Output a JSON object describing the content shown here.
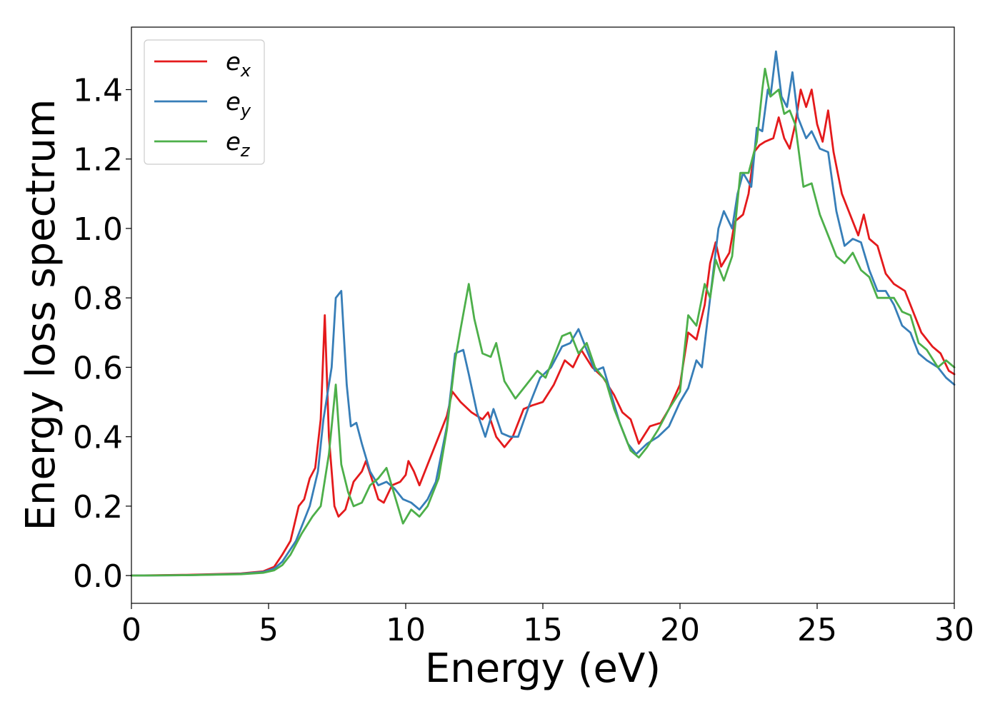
{
  "chart_data": {
    "type": "line",
    "title": "",
    "xlabel": "Energy (eV)",
    "ylabel": "Energy loss spectrum",
    "xlim": [
      0,
      30
    ],
    "ylim": [
      -0.08,
      1.58
    ],
    "x_ticks": [
      0,
      5,
      10,
      15,
      20,
      25,
      30
    ],
    "x_tick_labels": [
      "0",
      "5",
      "10",
      "15",
      "20",
      "25",
      "30"
    ],
    "y_ticks": [
      0.0,
      0.2,
      0.4,
      0.6,
      0.8,
      1.0,
      1.2,
      1.4
    ],
    "y_tick_labels": [
      "0.0",
      "0.2",
      "0.4",
      "0.6",
      "0.8",
      "1.0",
      "1.2",
      "1.4"
    ],
    "grid": false,
    "legend_position": "top-left",
    "series": [
      {
        "name": "e",
        "subscript": "x",
        "color": "#e41a1c",
        "points": [
          [
            0,
            0
          ],
          [
            2,
            0.002
          ],
          [
            4,
            0.006
          ],
          [
            4.8,
            0.012
          ],
          [
            5.2,
            0.025
          ],
          [
            5.5,
            0.06
          ],
          [
            5.8,
            0.1
          ],
          [
            6.1,
            0.2
          ],
          [
            6.3,
            0.22
          ],
          [
            6.5,
            0.28
          ],
          [
            6.7,
            0.31
          ],
          [
            6.9,
            0.45
          ],
          [
            7.05,
            0.75
          ],
          [
            7.2,
            0.4
          ],
          [
            7.4,
            0.2
          ],
          [
            7.55,
            0.17
          ],
          [
            7.8,
            0.19
          ],
          [
            8.1,
            0.27
          ],
          [
            8.4,
            0.3
          ],
          [
            8.55,
            0.33
          ],
          [
            8.8,
            0.27
          ],
          [
            9.0,
            0.22
          ],
          [
            9.2,
            0.21
          ],
          [
            9.5,
            0.26
          ],
          [
            9.8,
            0.27
          ],
          [
            10.0,
            0.29
          ],
          [
            10.1,
            0.33
          ],
          [
            10.3,
            0.3
          ],
          [
            10.5,
            0.26
          ],
          [
            10.8,
            0.32
          ],
          [
            11.2,
            0.4
          ],
          [
            11.5,
            0.46
          ],
          [
            11.7,
            0.53
          ],
          [
            12.0,
            0.5
          ],
          [
            12.4,
            0.47
          ],
          [
            12.8,
            0.45
          ],
          [
            13.0,
            0.47
          ],
          [
            13.3,
            0.4
          ],
          [
            13.6,
            0.37
          ],
          [
            13.9,
            0.4
          ],
          [
            14.3,
            0.48
          ],
          [
            14.6,
            0.49
          ],
          [
            15.0,
            0.5
          ],
          [
            15.4,
            0.55
          ],
          [
            15.8,
            0.62
          ],
          [
            16.1,
            0.6
          ],
          [
            16.4,
            0.65
          ],
          [
            16.8,
            0.6
          ],
          [
            17.2,
            0.57
          ],
          [
            17.6,
            0.52
          ],
          [
            17.9,
            0.47
          ],
          [
            18.2,
            0.45
          ],
          [
            18.5,
            0.38
          ],
          [
            18.9,
            0.43
          ],
          [
            19.3,
            0.44
          ],
          [
            19.6,
            0.48
          ],
          [
            20.0,
            0.55
          ],
          [
            20.3,
            0.7
          ],
          [
            20.6,
            0.68
          ],
          [
            20.9,
            0.78
          ],
          [
            21.1,
            0.9
          ],
          [
            21.3,
            0.96
          ],
          [
            21.5,
            0.89
          ],
          [
            21.8,
            0.93
          ],
          [
            22.0,
            1.02
          ],
          [
            22.3,
            1.04
          ],
          [
            22.5,
            1.1
          ],
          [
            22.7,
            1.22
          ],
          [
            22.9,
            1.24
          ],
          [
            23.1,
            1.25
          ],
          [
            23.4,
            1.26
          ],
          [
            23.6,
            1.32
          ],
          [
            23.8,
            1.26
          ],
          [
            24.0,
            1.23
          ],
          [
            24.2,
            1.3
          ],
          [
            24.4,
            1.4
          ],
          [
            24.6,
            1.35
          ],
          [
            24.8,
            1.4
          ],
          [
            25.0,
            1.3
          ],
          [
            25.2,
            1.25
          ],
          [
            25.4,
            1.34
          ],
          [
            25.6,
            1.22
          ],
          [
            25.9,
            1.1
          ],
          [
            26.2,
            1.04
          ],
          [
            26.5,
            0.98
          ],
          [
            26.7,
            1.04
          ],
          [
            26.9,
            0.97
          ],
          [
            27.2,
            0.95
          ],
          [
            27.5,
            0.87
          ],
          [
            27.8,
            0.84
          ],
          [
            28.2,
            0.82
          ],
          [
            28.5,
            0.76
          ],
          [
            28.8,
            0.7
          ],
          [
            29.2,
            0.66
          ],
          [
            29.5,
            0.64
          ],
          [
            29.8,
            0.59
          ],
          [
            30.0,
            0.58
          ]
        ]
      },
      {
        "name": "e",
        "subscript": "y",
        "color": "#377eb8",
        "points": [
          [
            0,
            0
          ],
          [
            2,
            0.001
          ],
          [
            4,
            0.005
          ],
          [
            4.8,
            0.01
          ],
          [
            5.2,
            0.02
          ],
          [
            5.5,
            0.04
          ],
          [
            6.0,
            0.1
          ],
          [
            6.5,
            0.2
          ],
          [
            6.8,
            0.3
          ],
          [
            7.0,
            0.45
          ],
          [
            7.3,
            0.6
          ],
          [
            7.45,
            0.8
          ],
          [
            7.65,
            0.82
          ],
          [
            7.85,
            0.55
          ],
          [
            8.0,
            0.43
          ],
          [
            8.2,
            0.44
          ],
          [
            8.4,
            0.38
          ],
          [
            8.7,
            0.3
          ],
          [
            9.0,
            0.26
          ],
          [
            9.3,
            0.27
          ],
          [
            9.6,
            0.25
          ],
          [
            9.9,
            0.22
          ],
          [
            10.2,
            0.21
          ],
          [
            10.5,
            0.19
          ],
          [
            10.8,
            0.22
          ],
          [
            11.1,
            0.27
          ],
          [
            11.5,
            0.43
          ],
          [
            11.8,
            0.64
          ],
          [
            12.1,
            0.65
          ],
          [
            12.3,
            0.58
          ],
          [
            12.6,
            0.47
          ],
          [
            12.9,
            0.4
          ],
          [
            13.2,
            0.48
          ],
          [
            13.5,
            0.41
          ],
          [
            13.8,
            0.4
          ],
          [
            14.1,
            0.4
          ],
          [
            14.5,
            0.49
          ],
          [
            14.9,
            0.57
          ],
          [
            15.3,
            0.6
          ],
          [
            15.7,
            0.66
          ],
          [
            16.0,
            0.67
          ],
          [
            16.3,
            0.71
          ],
          [
            16.6,
            0.65
          ],
          [
            16.9,
            0.59
          ],
          [
            17.2,
            0.6
          ],
          [
            17.5,
            0.52
          ],
          [
            17.8,
            0.44
          ],
          [
            18.1,
            0.38
          ],
          [
            18.4,
            0.35
          ],
          [
            18.8,
            0.38
          ],
          [
            19.2,
            0.4
          ],
          [
            19.6,
            0.43
          ],
          [
            20.0,
            0.5
          ],
          [
            20.3,
            0.54
          ],
          [
            20.6,
            0.62
          ],
          [
            20.8,
            0.6
          ],
          [
            21.1,
            0.8
          ],
          [
            21.4,
            1.0
          ],
          [
            21.6,
            1.05
          ],
          [
            21.9,
            1.0
          ],
          [
            22.1,
            1.1
          ],
          [
            22.3,
            1.16
          ],
          [
            22.6,
            1.12
          ],
          [
            22.8,
            1.29
          ],
          [
            23.0,
            1.28
          ],
          [
            23.2,
            1.4
          ],
          [
            23.3,
            1.38
          ],
          [
            23.5,
            1.51
          ],
          [
            23.7,
            1.38
          ],
          [
            23.9,
            1.35
          ],
          [
            24.1,
            1.45
          ],
          [
            24.3,
            1.32
          ],
          [
            24.6,
            1.26
          ],
          [
            24.8,
            1.28
          ],
          [
            25.1,
            1.23
          ],
          [
            25.4,
            1.22
          ],
          [
            25.7,
            1.05
          ],
          [
            26.0,
            0.95
          ],
          [
            26.3,
            0.97
          ],
          [
            26.6,
            0.96
          ],
          [
            26.9,
            0.88
          ],
          [
            27.2,
            0.82
          ],
          [
            27.5,
            0.82
          ],
          [
            27.8,
            0.78
          ],
          [
            28.1,
            0.72
          ],
          [
            28.4,
            0.7
          ],
          [
            28.7,
            0.64
          ],
          [
            29.0,
            0.62
          ],
          [
            29.4,
            0.6
          ],
          [
            29.7,
            0.57
          ],
          [
            30.0,
            0.55
          ]
        ]
      },
      {
        "name": "e",
        "subscript": "z",
        "color": "#4daf4a",
        "points": [
          [
            0,
            0
          ],
          [
            2,
            0.001
          ],
          [
            4,
            0.004
          ],
          [
            4.8,
            0.008
          ],
          [
            5.2,
            0.015
          ],
          [
            5.5,
            0.03
          ],
          [
            5.8,
            0.06
          ],
          [
            6.2,
            0.12
          ],
          [
            6.6,
            0.17
          ],
          [
            6.9,
            0.2
          ],
          [
            7.2,
            0.35
          ],
          [
            7.45,
            0.55
          ],
          [
            7.65,
            0.32
          ],
          [
            7.9,
            0.24
          ],
          [
            8.1,
            0.2
          ],
          [
            8.4,
            0.21
          ],
          [
            8.7,
            0.26
          ],
          [
            9.0,
            0.28
          ],
          [
            9.3,
            0.31
          ],
          [
            9.6,
            0.23
          ],
          [
            9.9,
            0.15
          ],
          [
            10.2,
            0.19
          ],
          [
            10.5,
            0.17
          ],
          [
            10.8,
            0.2
          ],
          [
            11.2,
            0.28
          ],
          [
            11.5,
            0.42
          ],
          [
            11.8,
            0.62
          ],
          [
            12.0,
            0.71
          ],
          [
            12.3,
            0.84
          ],
          [
            12.5,
            0.74
          ],
          [
            12.8,
            0.64
          ],
          [
            13.1,
            0.63
          ],
          [
            13.3,
            0.67
          ],
          [
            13.6,
            0.56
          ],
          [
            14.0,
            0.51
          ],
          [
            14.4,
            0.55
          ],
          [
            14.8,
            0.59
          ],
          [
            15.1,
            0.57
          ],
          [
            15.4,
            0.63
          ],
          [
            15.7,
            0.69
          ],
          [
            16.0,
            0.7
          ],
          [
            16.3,
            0.64
          ],
          [
            16.6,
            0.67
          ],
          [
            16.9,
            0.6
          ],
          [
            17.3,
            0.56
          ],
          [
            17.6,
            0.48
          ],
          [
            17.9,
            0.42
          ],
          [
            18.2,
            0.36
          ],
          [
            18.5,
            0.34
          ],
          [
            18.8,
            0.37
          ],
          [
            19.2,
            0.42
          ],
          [
            19.6,
            0.48
          ],
          [
            20.0,
            0.53
          ],
          [
            20.3,
            0.75
          ],
          [
            20.6,
            0.72
          ],
          [
            20.9,
            0.84
          ],
          [
            21.1,
            0.8
          ],
          [
            21.3,
            0.91
          ],
          [
            21.6,
            0.85
          ],
          [
            21.9,
            0.92
          ],
          [
            22.2,
            1.16
          ],
          [
            22.5,
            1.16
          ],
          [
            22.8,
            1.25
          ],
          [
            23.0,
            1.4
          ],
          [
            23.1,
            1.46
          ],
          [
            23.3,
            1.38
          ],
          [
            23.6,
            1.4
          ],
          [
            23.8,
            1.33
          ],
          [
            24.0,
            1.34
          ],
          [
            24.2,
            1.3
          ],
          [
            24.5,
            1.12
          ],
          [
            24.8,
            1.13
          ],
          [
            25.1,
            1.04
          ],
          [
            25.4,
            0.98
          ],
          [
            25.7,
            0.92
          ],
          [
            26.0,
            0.9
          ],
          [
            26.3,
            0.93
          ],
          [
            26.6,
            0.88
          ],
          [
            26.9,
            0.86
          ],
          [
            27.2,
            0.8
          ],
          [
            27.5,
            0.8
          ],
          [
            27.8,
            0.8
          ],
          [
            28.1,
            0.76
          ],
          [
            28.4,
            0.75
          ],
          [
            28.7,
            0.67
          ],
          [
            29.0,
            0.65
          ],
          [
            29.4,
            0.6
          ],
          [
            29.7,
            0.62
          ],
          [
            30.0,
            0.6
          ]
        ]
      }
    ]
  }
}
